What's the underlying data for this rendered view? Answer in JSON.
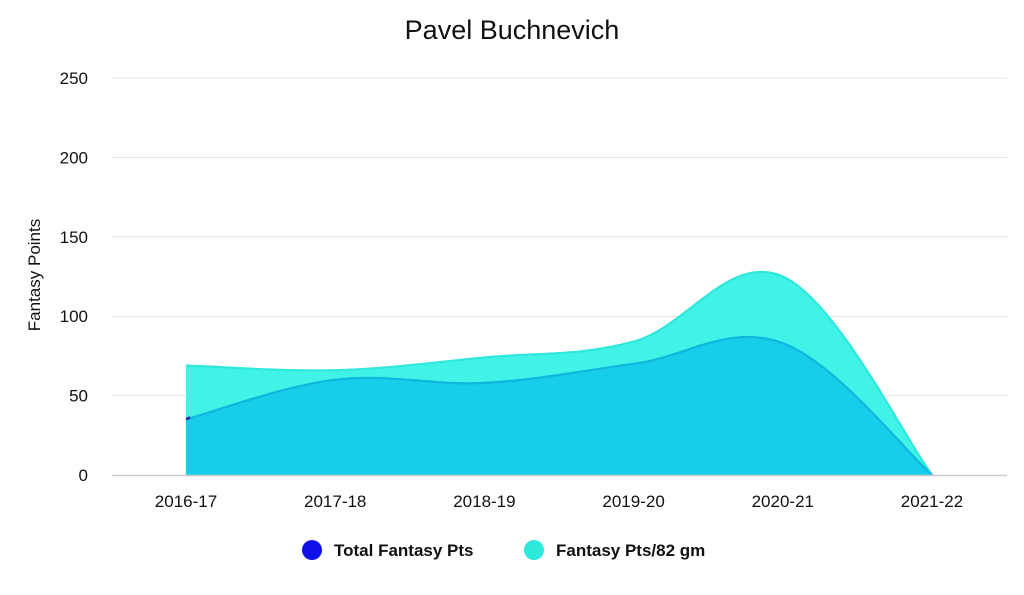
{
  "chart_data": {
    "type": "area",
    "title": "Pavel Buchnevich",
    "xlabel": "",
    "ylabel": "Fantasy Points",
    "categories": [
      "2016-17",
      "2017-18",
      "2018-19",
      "2019-20",
      "2020-21",
      "2021-22"
    ],
    "ylim": [
      0,
      250
    ],
    "yticks": [
      0,
      50,
      100,
      150,
      200,
      250
    ],
    "grid": true,
    "legend_position": "bottom",
    "series": [
      {
        "name": "Total Fantasy Pts",
        "values": [
          35,
          60,
          58,
          70,
          83,
          0
        ],
        "color": "#1010e8",
        "fill": "#13cbe8"
      },
      {
        "name": "Fantasy Pts/82 gm",
        "values": [
          69,
          66,
          74,
          84,
          125,
          0
        ],
        "color": "#2ee8dc",
        "fill": "#41f2e6"
      }
    ]
  }
}
